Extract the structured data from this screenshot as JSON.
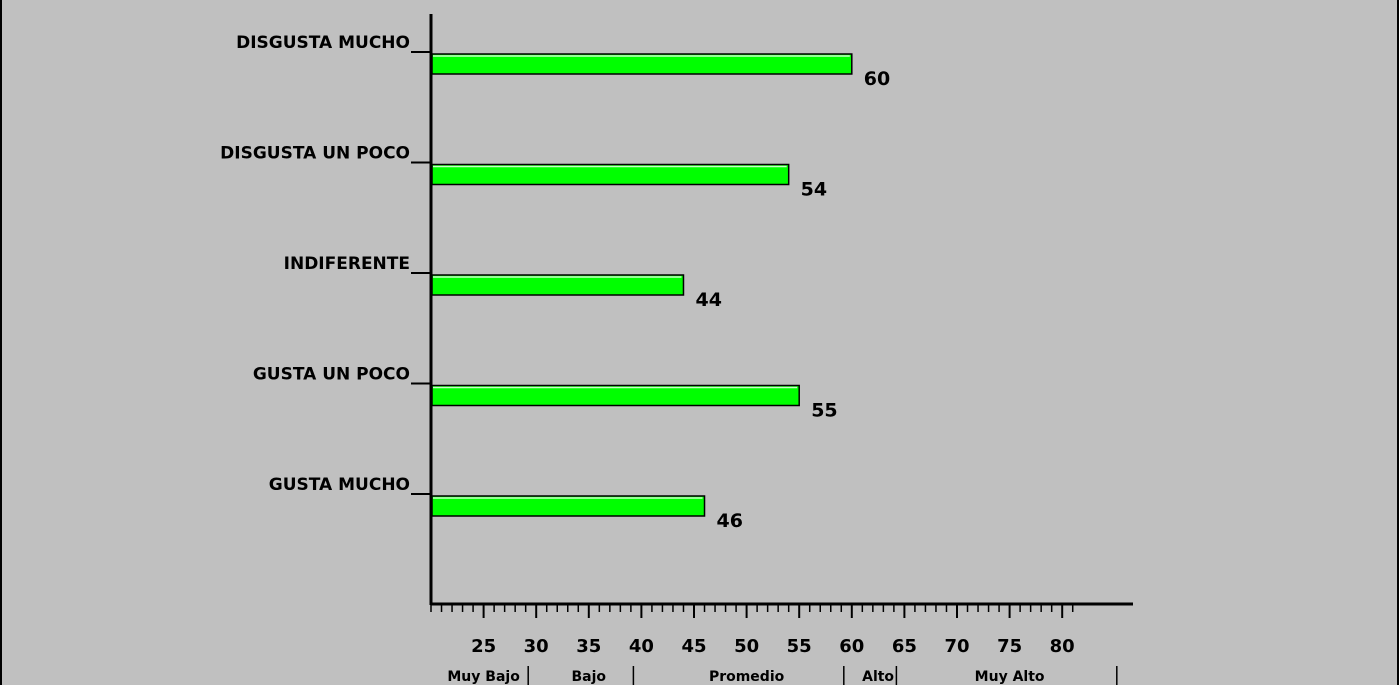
{
  "chart_data": {
    "type": "bar",
    "orientation": "horizontal",
    "categories": [
      "DISGUSTA MUCHO",
      "DISGUSTA UN POCO",
      "INDIFERENTE",
      "GUSTA UN POCO",
      "GUSTA MUCHO"
    ],
    "values": [
      60,
      54,
      44,
      55,
      46
    ],
    "xlim": [
      20,
      85
    ],
    "x_ticks": [
      25,
      30,
      35,
      40,
      45,
      50,
      55,
      60,
      65,
      70,
      75,
      80
    ],
    "bands": [
      {
        "label": "Muy Bajo",
        "from": 20,
        "to": 30
      },
      {
        "label": "Bajo",
        "from": 30,
        "to": 40
      },
      {
        "label": "Promedio",
        "from": 40,
        "to": 60
      },
      {
        "label": "Alto",
        "from": 60,
        "to": 65
      },
      {
        "label": "Muy Alto",
        "from": 65,
        "to": 85
      }
    ],
    "bar_color": "#00ff00",
    "background_color": "#c0c0c0",
    "grid": false,
    "legend": "none",
    "title": "",
    "xlabel": "",
    "ylabel": ""
  }
}
